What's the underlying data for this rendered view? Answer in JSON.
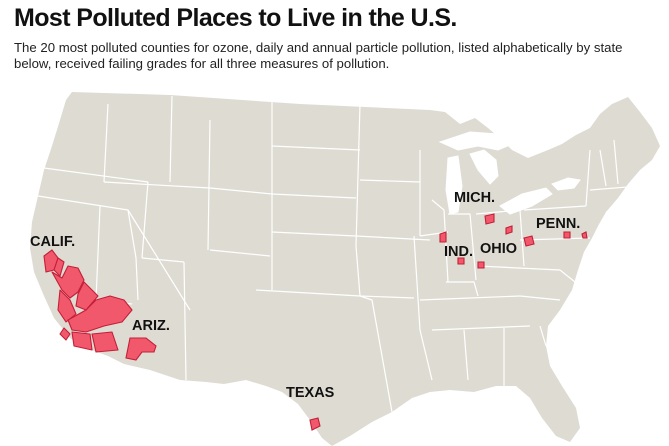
{
  "header": {
    "title": "Most Polluted Places to Live in the U.S.",
    "subtitle": "The 20 most polluted counties for ozone, daily and annual particle pollution, listed alphabetically by state below, received failing grades for all three measures of pollution."
  },
  "map": {
    "labels": {
      "california": "CALIF.",
      "arizona": "ARIZ.",
      "texas": "TEXAS",
      "michigan": "MICH.",
      "indiana": "IND.",
      "ohio": "OHIO",
      "pennsylvania": "PENN."
    },
    "colors": {
      "land": "#dedbd2",
      "border": "#ffffff",
      "highlight": "#f2586b",
      "highlight_stroke": "#c21f38",
      "water": "#ffffff"
    }
  }
}
